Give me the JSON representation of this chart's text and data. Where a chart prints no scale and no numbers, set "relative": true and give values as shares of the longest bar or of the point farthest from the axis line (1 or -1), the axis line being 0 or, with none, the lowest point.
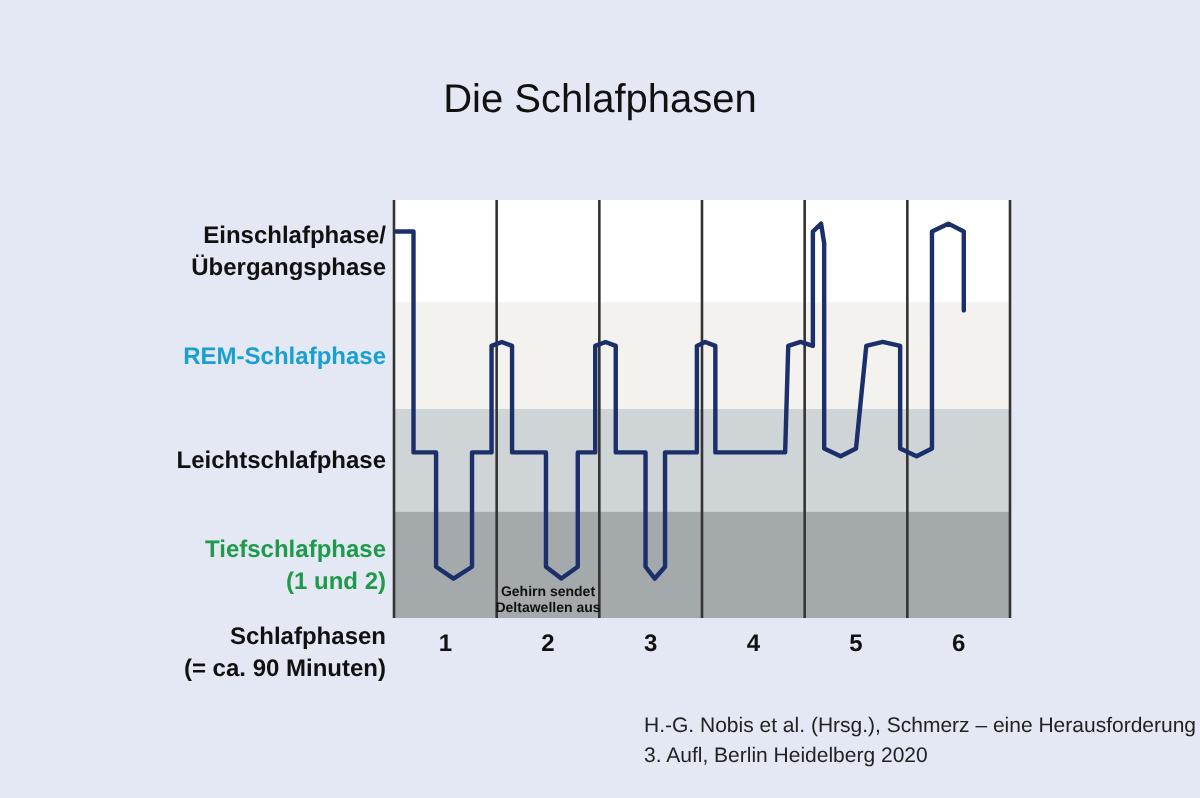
{
  "chart_data": {
    "type": "line",
    "title": "Die Schlafphasen",
    "xlabel": "Schlafphasen (= ca. 90 Minuten)",
    "relative": true,
    "x": [
      0.02,
      0.19,
      0.19,
      0.41,
      0.41,
      0.58,
      0.76,
      0.76,
      0.95,
      0.95,
      1.05,
      1.15,
      1.15,
      1.48,
      1.48,
      1.63,
      1.79,
      1.79,
      1.96,
      1.96,
      2.06,
      2.16,
      2.16,
      2.45,
      2.45,
      2.54,
      2.64,
      2.64,
      2.95,
      2.95,
      3.03,
      3.13,
      3.13,
      3.81,
      3.84,
      3.96,
      4.08,
      4.08,
      4.16,
      4.19,
      4.19,
      4.35,
      4.5,
      4.6,
      4.76,
      4.93,
      4.93,
      5.09,
      5.24,
      5.24,
      5.4,
      5.55,
      5.55
    ],
    "series": [
      {
        "color": "#1b2f6b",
        "values": [
          0.98,
          0.98,
          0.42,
          0.42,
          0.13,
          0.1,
          0.13,
          0.42,
          0.42,
          0.69,
          0.7,
          0.69,
          0.42,
          0.42,
          0.13,
          0.1,
          0.13,
          0.42,
          0.42,
          0.69,
          0.7,
          0.69,
          0.42,
          0.42,
          0.13,
          0.1,
          0.13,
          0.42,
          0.42,
          0.69,
          0.7,
          0.69,
          0.42,
          0.42,
          0.69,
          0.7,
          0.69,
          0.98,
          1,
          0.95,
          0.43,
          0.41,
          0.43,
          0.69,
          0.7,
          0.69,
          0.43,
          0.41,
          0.43,
          0.98,
          1,
          0.98,
          0.78
        ]
      }
    ],
    "xlim": [
      0,
      6
    ],
    "xticks": [
      {
        "value": 0.5,
        "label": "1"
      },
      {
        "value": 1.5,
        "label": "2"
      },
      {
        "value": 2.5,
        "label": "3"
      },
      {
        "value": 3.5,
        "label": "4"
      },
      {
        "value": 4.5,
        "label": "5"
      },
      {
        "value": 5.5,
        "label": "6"
      }
    ],
    "bands": [
      {
        "axis": "y",
        "from": 0,
        "to": 0.27,
        "color": "#a4a9ac",
        "label": "Tiefschlafphase (1 und 2)"
      },
      {
        "axis": "y",
        "from": 0.27,
        "to": 0.53,
        "color": "#cfd4d7",
        "label": "Leichtschlafphase"
      },
      {
        "axis": "y",
        "from": 0.53,
        "to": 0.8,
        "color": "#f3f2ee",
        "label": "REM-Schlafphase"
      },
      {
        "axis": "y",
        "from": 0.8,
        "to": 1.06,
        "color": "#ffffff",
        "label": "Einschlafphase/ Übergangsphase"
      }
    ],
    "ref_lines": [
      {
        "axis": "x",
        "value": 0,
        "color": "#333333"
      },
      {
        "axis": "x",
        "value": 1,
        "color": "#333333"
      },
      {
        "axis": "x",
        "value": 2,
        "color": "#333333"
      },
      {
        "axis": "x",
        "value": 3,
        "color": "#333333"
      },
      {
        "axis": "x",
        "value": 4,
        "color": "#333333"
      },
      {
        "axis": "x",
        "value": 5,
        "color": "#333333"
      },
      {
        "axis": "x",
        "value": 6,
        "color": "#333333"
      }
    ],
    "annotations": [
      "Gehirn sendet Deltawellen aus",
      "H.-G. Nobis et al. (Hrsg.), Schmerz – eine Herausforderung",
      "3. Aufl, Berlin Heidelberg 2020"
    ]
  }
}
